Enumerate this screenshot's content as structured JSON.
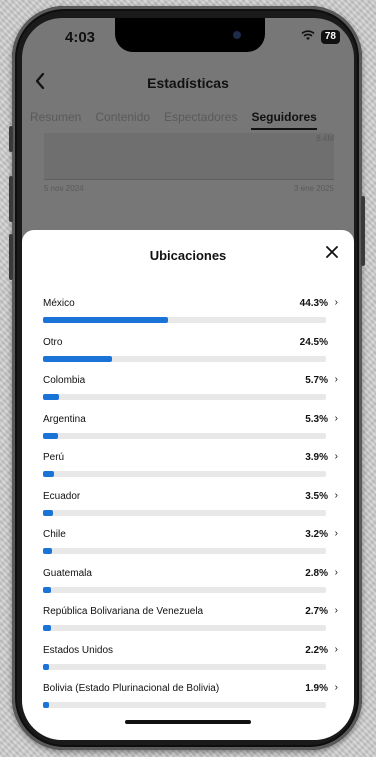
{
  "status_bar": {
    "time": "4:03",
    "battery": "78"
  },
  "nav": {
    "title": "Estadísticas"
  },
  "tabs": [
    "Resumen",
    "Contenido",
    "Espectadores",
    "Seguidores"
  ],
  "background_chart": {
    "top_value": "8.4M",
    "date_start": "5 nov 2024",
    "date_end": "3 ene 2025"
  },
  "sheet": {
    "title": "Ubicaciones",
    "locations": [
      {
        "name": "México",
        "percent": "44.3%",
        "value": 44.3,
        "chevron": true
      },
      {
        "name": "Otro",
        "percent": "24.5%",
        "value": 24.5,
        "chevron": false
      },
      {
        "name": "Colombia",
        "percent": "5.7%",
        "value": 5.7,
        "chevron": true
      },
      {
        "name": "Argentina",
        "percent": "5.3%",
        "value": 5.3,
        "chevron": true
      },
      {
        "name": "Perú",
        "percent": "3.9%",
        "value": 3.9,
        "chevron": true
      },
      {
        "name": "Ecuador",
        "percent": "3.5%",
        "value": 3.5,
        "chevron": true
      },
      {
        "name": "Chile",
        "percent": "3.2%",
        "value": 3.2,
        "chevron": true
      },
      {
        "name": "Guatemala",
        "percent": "2.8%",
        "value": 2.8,
        "chevron": true
      },
      {
        "name": "República Bolivariana de Venezuela",
        "percent": "2.7%",
        "value": 2.7,
        "chevron": true
      },
      {
        "name": "Estados Unidos",
        "percent": "2.2%",
        "value": 2.2,
        "chevron": true
      },
      {
        "name": "Bolivia (Estado Plurinacional de Bolivia)",
        "percent": "1.9%",
        "value": 1.9,
        "chevron": true
      }
    ]
  },
  "colors": {
    "bar_fill": "#1a73d6",
    "bar_track": "#e8e8e8"
  }
}
